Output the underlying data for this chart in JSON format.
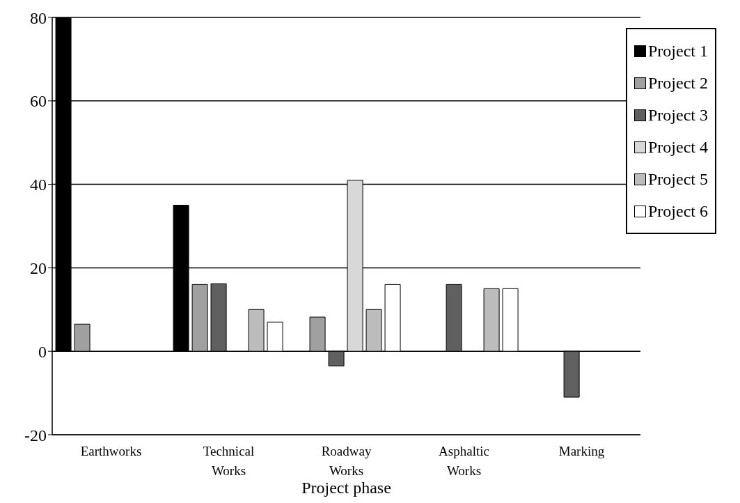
{
  "chart_data": {
    "type": "bar",
    "xlabel": "Project phase",
    "categories": [
      "Earthworks",
      "Technical Works",
      "Roadway Works",
      "Asphaltic Works",
      "Marking"
    ],
    "series": [
      {
        "name": "Project 1",
        "color": "#000000",
        "values": [
          80,
          35,
          0,
          0,
          0
        ]
      },
      {
        "name": "Project 2",
        "color": "#a0a0a0",
        "values": [
          6.5,
          16,
          8.2,
          0,
          0
        ]
      },
      {
        "name": "Project 3",
        "color": "#606060",
        "values": [
          0,
          16.2,
          -3.5,
          16,
          -11
        ]
      },
      {
        "name": "Project 4",
        "color": "#d8d8d8",
        "values": [
          0,
          0,
          41,
          0,
          0
        ]
      },
      {
        "name": "Project 5",
        "color": "#bcbcbc",
        "values": [
          0,
          10,
          10,
          15,
          0
        ]
      },
      {
        "name": "Project 6",
        "color": "#ffffff",
        "values": [
          0,
          7,
          16,
          15,
          0
        ]
      }
    ],
    "ylim": [
      -20,
      80
    ],
    "yticks": [
      -20,
      0,
      20,
      40,
      60,
      80
    ],
    "grid": "y",
    "legend": "top right"
  }
}
